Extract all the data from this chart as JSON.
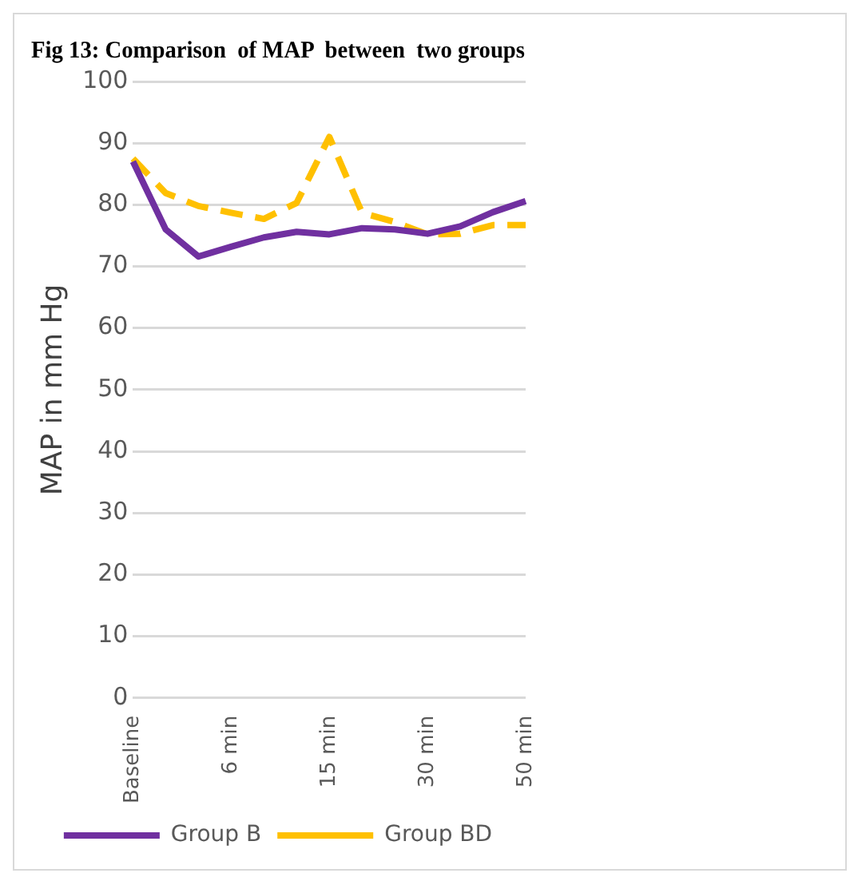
{
  "chart_data": {
    "type": "line",
    "title": "Fig 13: Comparison  of MAP  between  two groups",
    "ylabel": "MAP in mm Hg",
    "categories": [
      "Baseline",
      null,
      null,
      "6 min",
      null,
      null,
      "15 min",
      null,
      null,
      "30 min",
      null,
      null,
      "50 min"
    ],
    "series": [
      {
        "name": "Group B",
        "color": "#7030a0",
        "line_style": "solid",
        "values": [
          87,
          76,
          71.6,
          73.2,
          74.7,
          75.6,
          75.2,
          76.2,
          76,
          75.3,
          76.5,
          78.8,
          80.6
        ]
      },
      {
        "name": "Group BD",
        "color": "#ffc000",
        "line_style": "dashed",
        "values": [
          87.5,
          81.9,
          79.8,
          78.7,
          77.7,
          80.3,
          91,
          78.7,
          77.2,
          75.2,
          75.3,
          76.7,
          76.7
        ]
      }
    ],
    "ylim": [
      0,
      100
    ],
    "yticks": [
      0,
      10,
      20,
      30,
      40,
      50,
      60,
      70,
      80,
      90,
      100
    ],
    "grid": "y",
    "legend": "bottom",
    "marker": "none"
  }
}
